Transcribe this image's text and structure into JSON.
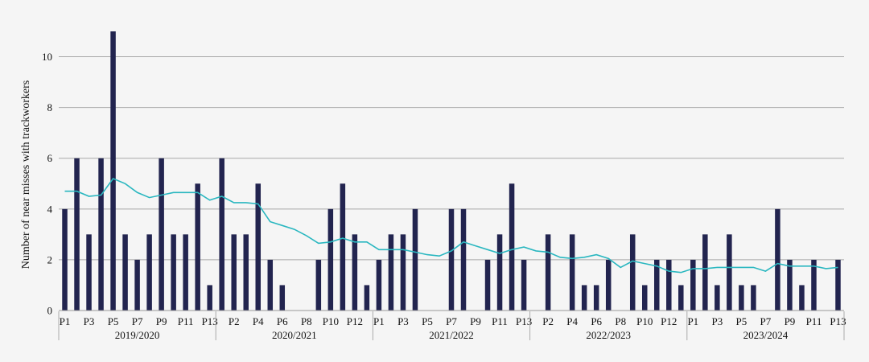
{
  "chart_data": {
    "type": "bar",
    "ylabel": "Number of near misses with trackworkers",
    "ylim": [
      0,
      11
    ],
    "y_ticks": [
      0,
      2,
      4,
      6,
      8,
      10
    ],
    "grid": true,
    "periods_per_year": 13,
    "years": [
      "2019/2020",
      "2020/2021",
      "2021/2022",
      "2022/2023",
      "2023/2024"
    ],
    "x_tick_labels": [
      "P1",
      "P3",
      "P5",
      "P7",
      "P9",
      "P11",
      "P13",
      "P2",
      "P4",
      "P6",
      "P8",
      "P10",
      "P12",
      "P1",
      "P3",
      "P5",
      "P7",
      "P9",
      "P11",
      "P13",
      "P2",
      "P4",
      "P6",
      "P8",
      "P10",
      "P12",
      "P1",
      "P3",
      "P5",
      "P7",
      "P9",
      "P11",
      "P13"
    ],
    "x_tick_indices": [
      0,
      2,
      4,
      6,
      8,
      10,
      12,
      14,
      16,
      18,
      20,
      22,
      24,
      26,
      28,
      30,
      32,
      34,
      36,
      38,
      40,
      42,
      44,
      46,
      48,
      50,
      52,
      54,
      56,
      58,
      60,
      62,
      64
    ],
    "series": [
      {
        "type": "bar",
        "color": "#22244f",
        "values": [
          4,
          6,
          3,
          6,
          11,
          3,
          2,
          3,
          6,
          3,
          3,
          5,
          1,
          6,
          3,
          3,
          5,
          2,
          1,
          0,
          0,
          2,
          4,
          5,
          3,
          1,
          2,
          3,
          3,
          4,
          0,
          0,
          4,
          4,
          0,
          2,
          3,
          5,
          2,
          0,
          3,
          0,
          3,
          1,
          1,
          2,
          0,
          3,
          1,
          2,
          2,
          1,
          2,
          3,
          1,
          3,
          1,
          1,
          0,
          4,
          2,
          1,
          2,
          0,
          2
        ]
      },
      {
        "type": "line",
        "color": "#2ab7c0",
        "values": [
          4.7,
          4.7,
          4.5,
          4.55,
          5.2,
          5.0,
          4.65,
          4.45,
          4.55,
          4.65,
          4.65,
          4.65,
          4.35,
          4.5,
          4.25,
          4.25,
          4.2,
          3.5,
          3.35,
          3.2,
          2.95,
          2.65,
          2.7,
          2.85,
          2.7,
          2.7,
          2.4,
          2.4,
          2.4,
          2.3,
          2.2,
          2.15,
          2.35,
          2.7,
          2.55,
          2.4,
          2.25,
          2.4,
          2.5,
          2.35,
          2.3,
          2.1,
          2.05,
          2.1,
          2.2,
          2.05,
          1.7,
          1.95,
          1.85,
          1.75,
          1.55,
          1.5,
          1.65,
          1.65,
          1.7,
          1.7,
          1.7,
          1.7,
          1.55,
          1.85,
          1.75,
          1.75,
          1.75,
          1.65,
          1.7
        ]
      }
    ]
  }
}
